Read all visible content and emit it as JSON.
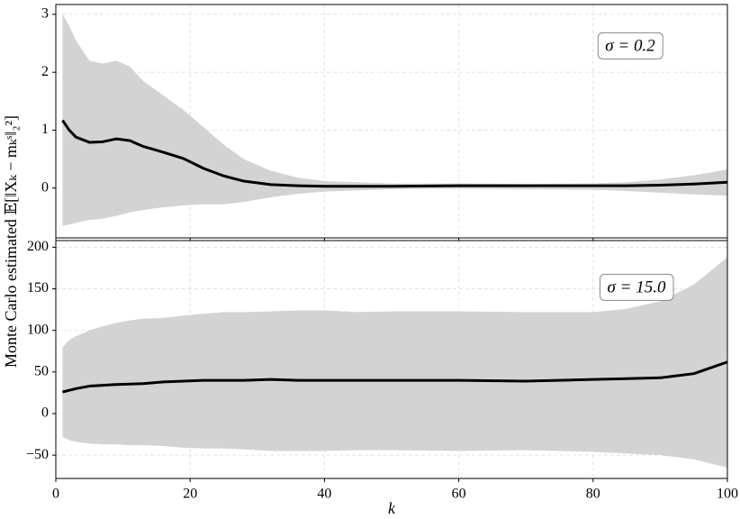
{
  "chart_data": [
    {
      "type": "band-line",
      "ylabel": "Monte Carlo estimated 𝔼[‖Xₖ − mₖˢ‖₂²]",
      "annotation": "σ = 0.2",
      "color": "#000000",
      "band_color": "#d3d3d3",
      "grid": true,
      "x": [
        1,
        2,
        3,
        5,
        7,
        9,
        11,
        13,
        16,
        19,
        22,
        25,
        28,
        32,
        36,
        40,
        45,
        50,
        60,
        70,
        80,
        85,
        90,
        95,
        100
      ],
      "values": [
        1.17,
        1.0,
        0.88,
        0.79,
        0.8,
        0.85,
        0.82,
        0.72,
        0.62,
        0.51,
        0.34,
        0.21,
        0.12,
        0.06,
        0.04,
        0.03,
        0.03,
        0.03,
        0.04,
        0.04,
        0.04,
        0.04,
        0.05,
        0.07,
        0.1
      ],
      "upper": [
        3.0,
        2.8,
        2.55,
        2.2,
        2.15,
        2.2,
        2.1,
        1.85,
        1.6,
        1.35,
        1.05,
        0.75,
        0.5,
        0.3,
        0.18,
        0.12,
        0.1,
        0.08,
        0.08,
        0.07,
        0.08,
        0.1,
        0.15,
        0.22,
        0.32
      ],
      "lower": [
        -0.65,
        -0.63,
        -0.6,
        -0.55,
        -0.53,
        -0.48,
        -0.42,
        -0.38,
        -0.33,
        -0.3,
        -0.28,
        -0.28,
        -0.24,
        -0.16,
        -0.1,
        -0.06,
        -0.04,
        -0.02,
        -0.01,
        -0.02,
        -0.03,
        -0.05,
        -0.08,
        -0.11,
        -0.13
      ],
      "xlim": [
        0,
        100
      ],
      "xticks": [
        0,
        20,
        40,
        60,
        80,
        100
      ],
      "ylim": [
        -0.86,
        3.17
      ],
      "yticks": [
        0,
        1,
        2,
        3
      ]
    },
    {
      "type": "band-line",
      "xlabel": "k",
      "annotation": "σ = 15.0",
      "color": "#000000",
      "band_color": "#d3d3d3",
      "grid": true,
      "x": [
        1,
        2,
        3,
        5,
        7,
        9,
        11,
        13,
        16,
        19,
        22,
        25,
        28,
        32,
        36,
        40,
        45,
        50,
        60,
        70,
        80,
        85,
        90,
        95,
        100
      ],
      "values": [
        26,
        28,
        30,
        33,
        34,
        35,
        35.5,
        36,
        38,
        39,
        40,
        40,
        40,
        41,
        40,
        40,
        40,
        40,
        40,
        39,
        41,
        42,
        43,
        48,
        62
      ],
      "upper": [
        80,
        88,
        93,
        100,
        105,
        109,
        112,
        114,
        115,
        118,
        120,
        122,
        122,
        123,
        124,
        124,
        122,
        123,
        123,
        122,
        122,
        126,
        135,
        155,
        188
      ],
      "lower": [
        -28,
        -32,
        -34,
        -36,
        -37,
        -37,
        -38,
        -38,
        -39,
        -41,
        -42,
        -42,
        -43,
        -45,
        -45,
        -45,
        -44,
        -44,
        -45,
        -44,
        -46,
        -48,
        -50,
        -55,
        -65
      ],
      "xlim": [
        0,
        100
      ],
      "xticks": [
        0,
        20,
        40,
        60,
        80,
        100
      ],
      "ylim": [
        -78,
        208
      ],
      "yticks": [
        {
          "value": -50,
          "label": "−50"
        },
        0,
        50,
        100,
        150,
        200
      ]
    }
  ]
}
